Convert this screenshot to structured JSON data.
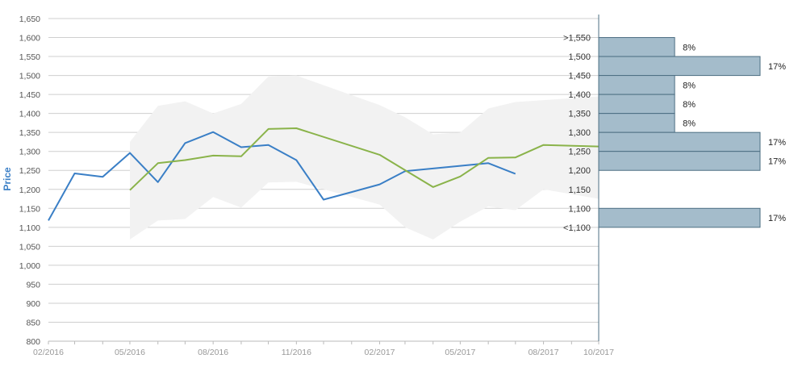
{
  "chart_data": {
    "type": "line",
    "ylabel": "Price",
    "ylim": [
      800,
      1650
    ],
    "yticks": [
      "800",
      "850",
      "900",
      "950",
      "1,000",
      "1,050",
      "1,100",
      "1,150",
      "1,200",
      "1,250",
      "1,300",
      "1,350",
      "1,400",
      "1,450",
      "1,500",
      "1,550",
      "1,600",
      "1,650"
    ],
    "ytick_values": [
      800,
      850,
      900,
      950,
      1000,
      1050,
      1100,
      1150,
      1200,
      1250,
      1300,
      1350,
      1400,
      1450,
      1500,
      1550,
      1600,
      1650
    ],
    "xlim": [
      "2016-02-01",
      "2017-10-01"
    ],
    "xticks": [
      "02/2016",
      "05/2016",
      "08/2016",
      "11/2016",
      "02/2017",
      "05/2017",
      "08/2017",
      "10/2017"
    ],
    "xtick_dates": [
      "2016-02-01",
      "2016-05-01",
      "2016-08-01",
      "2016-11-01",
      "2017-02-01",
      "2017-05-01",
      "2017-08-01",
      "2017-10-01"
    ],
    "grid": true,
    "series": [
      {
        "color": "#3a7fc6",
        "points": [
          [
            "2016-02-01",
            1118
          ],
          [
            "2016-03-01",
            1242
          ],
          [
            "2016-04-01",
            1233
          ],
          [
            "2016-05-01",
            1296
          ],
          [
            "2016-06-01",
            1219
          ],
          [
            "2016-07-01",
            1322
          ],
          [
            "2016-08-01",
            1351
          ],
          [
            "2016-09-01",
            1311
          ],
          [
            "2016-10-01",
            1317
          ],
          [
            "2016-11-01",
            1277
          ],
          [
            "2016-12-01",
            1173
          ],
          [
            "2017-01-01",
            1193
          ],
          [
            "2017-02-01",
            1213
          ],
          [
            "2017-03-01",
            1248
          ],
          [
            "2017-04-01",
            1255
          ],
          [
            "2017-05-01",
            1262
          ],
          [
            "2017-06-01",
            1269
          ],
          [
            "2017-07-01",
            1241
          ]
        ]
      },
      {
        "color": "#8ab34a",
        "points": [
          [
            "2016-05-01",
            1198
          ],
          [
            "2016-06-01",
            1269
          ],
          [
            "2016-07-01",
            1277
          ],
          [
            "2016-08-01",
            1289
          ],
          [
            "2016-09-01",
            1287
          ],
          [
            "2016-10-01",
            1359
          ],
          [
            "2016-11-01",
            1361
          ],
          [
            "2017-02-01",
            1291
          ],
          [
            "2017-04-01",
            1206
          ],
          [
            "2017-05-01",
            1234
          ],
          [
            "2017-06-01",
            1283
          ],
          [
            "2017-07-01",
            1284
          ],
          [
            "2017-08-01",
            1317
          ],
          [
            "2017-10-01",
            1313
          ]
        ]
      }
    ],
    "band": {
      "color": "#f2f2f2",
      "upper": [
        [
          "2016-05-01",
          1325
        ],
        [
          "2016-06-01",
          1420
        ],
        [
          "2016-07-01",
          1432
        ],
        [
          "2016-08-01",
          1400
        ],
        [
          "2016-09-01",
          1425
        ],
        [
          "2016-10-01",
          1497
        ],
        [
          "2016-11-01",
          1500
        ],
        [
          "2017-02-01",
          1422
        ],
        [
          "2017-03-01",
          1390
        ],
        [
          "2017-04-01",
          1345
        ],
        [
          "2017-05-01",
          1350
        ],
        [
          "2017-06-01",
          1413
        ],
        [
          "2017-07-01",
          1430
        ],
        [
          "2017-10-01",
          1445
        ]
      ],
      "lower": [
        [
          "2016-05-01",
          1068
        ],
        [
          "2016-06-01",
          1118
        ],
        [
          "2016-07-01",
          1122
        ],
        [
          "2016-08-01",
          1180
        ],
        [
          "2016-09-01",
          1152
        ],
        [
          "2016-10-01",
          1218
        ],
        [
          "2016-11-01",
          1220
        ],
        [
          "2017-02-01",
          1160
        ],
        [
          "2017-03-01",
          1100
        ],
        [
          "2017-04-01",
          1068
        ],
        [
          "2017-05-01",
          1115
        ],
        [
          "2017-06-01",
          1155
        ],
        [
          "2017-07-01",
          1145
        ],
        [
          "2017-08-01",
          1200
        ],
        [
          "2017-10-01",
          1175
        ]
      ]
    },
    "histogram": {
      "color": "#a4bccb",
      "border": "#4d6f83",
      "bins": [
        {
          "label": ">1,550",
          "low": 1550,
          "high": 1600,
          "value": 8,
          "text": "8%"
        },
        {
          "label": "1,500",
          "low": 1500,
          "high": 1550,
          "value": 17,
          "text": "17%"
        },
        {
          "label": "1,450",
          "low": 1450,
          "high": 1500,
          "value": 8,
          "text": "8%"
        },
        {
          "label": "1,400",
          "low": 1400,
          "high": 1450,
          "value": 8,
          "text": "8%"
        },
        {
          "label": "1,350",
          "low": 1350,
          "high": 1400,
          "value": 8,
          "text": "8%"
        },
        {
          "label": "1,300",
          "low": 1300,
          "high": 1350,
          "value": 17,
          "text": "17%"
        },
        {
          "label": "1,250",
          "low": 1250,
          "high": 1300,
          "value": 17,
          "text": "17%"
        },
        {
          "label": "1,200",
          "low": 1200,
          "high": 1250,
          "value": 0,
          "text": ""
        },
        {
          "label": "1,150",
          "low": 1150,
          "high": 1200,
          "value": 0,
          "text": ""
        },
        {
          "label": "1,100",
          "low": 1100,
          "high": 1150,
          "value": 17,
          "text": "17%"
        },
        {
          "label": "<1,100",
          "low": 1050,
          "high": 1100,
          "value": 0,
          "text": ""
        }
      ]
    }
  }
}
